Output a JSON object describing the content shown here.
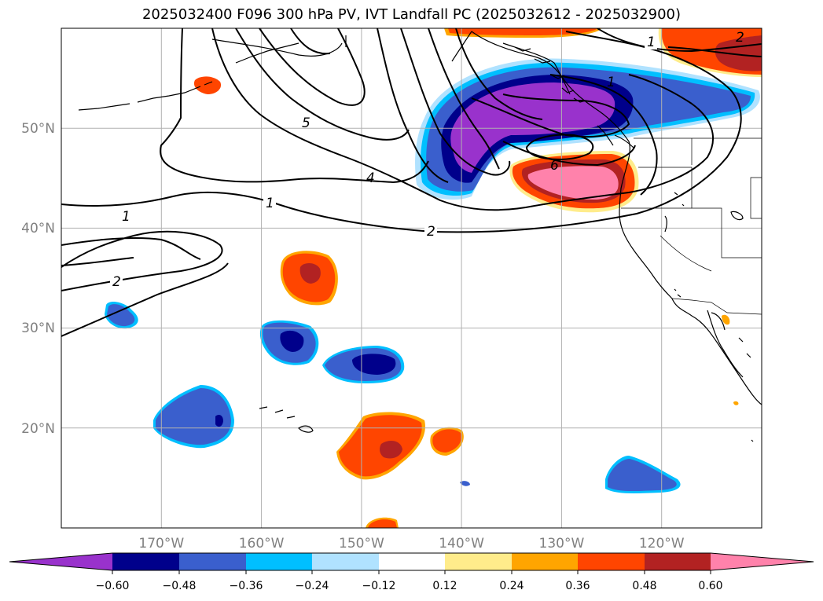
{
  "title": "2025032400 F096 300 hPa PV, IVT Landfall PC (2025032612 - 2025032900)",
  "map": {
    "lon_range": [
      -180,
      -110
    ],
    "lat_range": [
      10,
      60
    ],
    "lon_ticks": [
      {
        "value": -170,
        "label": "170°W"
      },
      {
        "value": -160,
        "label": "160°W"
      },
      {
        "value": -150,
        "label": "150°W"
      },
      {
        "value": -140,
        "label": "140°W"
      },
      {
        "value": -130,
        "label": "130°W"
      },
      {
        "value": -120,
        "label": "120°W"
      }
    ],
    "lat_ticks": [
      {
        "value": 50,
        "label": "50°N"
      },
      {
        "value": 40,
        "label": "40°N"
      },
      {
        "value": 30,
        "label": "30°N"
      },
      {
        "value": 20,
        "label": "20°N"
      }
    ],
    "contour_labels": [
      "1",
      "2",
      "4",
      "5",
      "6",
      "1",
      "2",
      "1",
      "2",
      "1"
    ]
  },
  "colorbar": {
    "colors": [
      "#9932CC",
      "#00008B",
      "#3A5FCD",
      "#00BFFF",
      "#B0E2FF",
      "#FFFFFF",
      "#FFEC8B",
      "#FFA500",
      "#FF4500",
      "#B22222",
      "#FF82AB"
    ],
    "tick_labels": [
      "−0.60",
      "−0.48",
      "−0.36",
      "−0.24",
      "−0.12",
      "0.12",
      "0.24",
      "0.36",
      "0.48",
      "0.60"
    ]
  }
}
